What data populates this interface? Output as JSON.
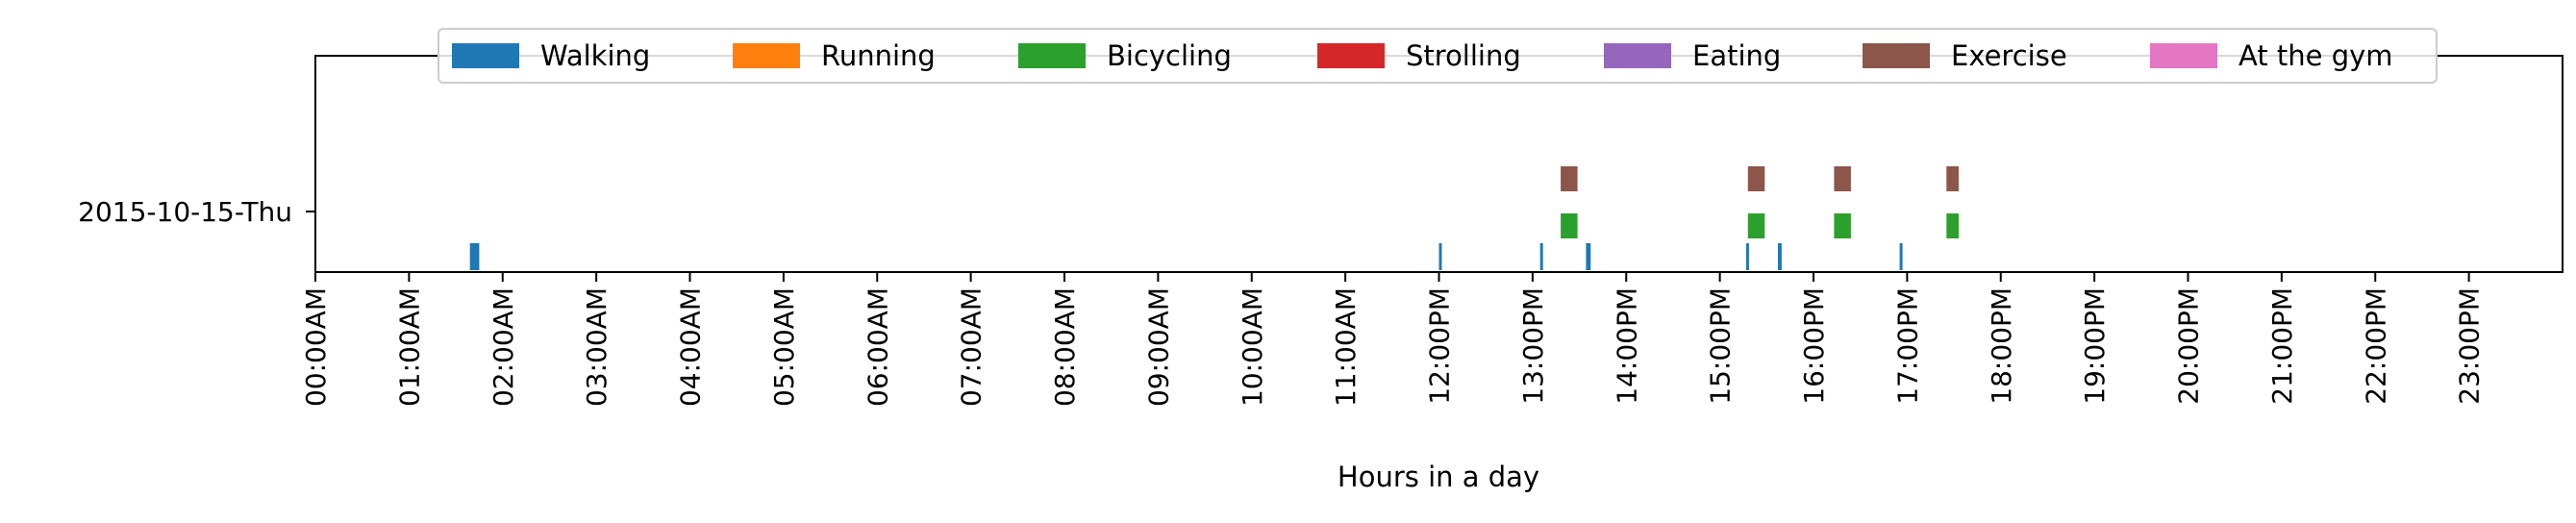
{
  "chart_data": {
    "type": "timeline",
    "xlabel": "Hours in a day",
    "ylabel": "",
    "xlim": [
      0,
      24
    ],
    "x_ticks": [
      {
        "value": 0,
        "label": "00:00AM"
      },
      {
        "value": 1,
        "label": "01:00AM"
      },
      {
        "value": 2,
        "label": "02:00AM"
      },
      {
        "value": 3,
        "label": "03:00AM"
      },
      {
        "value": 4,
        "label": "04:00AM"
      },
      {
        "value": 5,
        "label": "05:00AM"
      },
      {
        "value": 6,
        "label": "06:00AM"
      },
      {
        "value": 7,
        "label": "07:00AM"
      },
      {
        "value": 8,
        "label": "08:00AM"
      },
      {
        "value": 9,
        "label": "09:00AM"
      },
      {
        "value": 10,
        "label": "10:00AM"
      },
      {
        "value": 11,
        "label": "11:00AM"
      },
      {
        "value": 12,
        "label": "12:00PM"
      },
      {
        "value": 13,
        "label": "13:00PM"
      },
      {
        "value": 14,
        "label": "14:00PM"
      },
      {
        "value": 15,
        "label": "15:00PM"
      },
      {
        "value": 16,
        "label": "16:00PM"
      },
      {
        "value": 17,
        "label": "17:00PM"
      },
      {
        "value": 18,
        "label": "18:00PM"
      },
      {
        "value": 19,
        "label": "19:00PM"
      },
      {
        "value": 20,
        "label": "20:00PM"
      },
      {
        "value": 21,
        "label": "21:00PM"
      },
      {
        "value": 22,
        "label": "22:00PM"
      },
      {
        "value": 23,
        "label": "23:00PM"
      }
    ],
    "days": [
      "2015-10-15-Thu"
    ],
    "legend_position": "top-center",
    "grid": false,
    "series": [
      {
        "name": "Walking",
        "color": "#1f77b4",
        "lane": 0,
        "intervals": [
          [
            1.65,
            1.75
          ],
          [
            12.0,
            12.03
          ],
          [
            13.08,
            13.11
          ],
          [
            13.57,
            13.62
          ],
          [
            15.28,
            15.31
          ],
          [
            15.62,
            15.66
          ],
          [
            16.92,
            16.95
          ]
        ]
      },
      {
        "name": "Running",
        "color": "#ff7f0e",
        "lane": 1,
        "intervals": []
      },
      {
        "name": "Bicycling",
        "color": "#2ca02c",
        "lane": 1,
        "intervals": [
          [
            13.3,
            13.48
          ],
          [
            15.3,
            15.48
          ],
          [
            16.22,
            16.4
          ],
          [
            17.42,
            17.55
          ]
        ]
      },
      {
        "name": "Strolling",
        "color": "#d62728",
        "lane": 1,
        "intervals": []
      },
      {
        "name": "Eating",
        "color": "#9467bd",
        "lane": 1,
        "intervals": []
      },
      {
        "name": "Exercise",
        "color": "#8c564b",
        "lane": 2,
        "intervals": [
          [
            13.3,
            13.48
          ],
          [
            15.3,
            15.48
          ],
          [
            16.22,
            16.4
          ],
          [
            17.42,
            17.55
          ]
        ]
      },
      {
        "name": "At the gym",
        "color": "#e377c2",
        "lane": 2,
        "intervals": []
      }
    ]
  }
}
